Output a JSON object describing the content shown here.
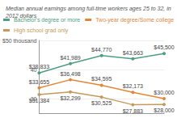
{
  "chart_data": {
    "type": "line",
    "subtitle": "Median annual earnings among full-time workers ages 25 to 32, in 2012 dollars",
    "categories": [
      null,
      null,
      null,
      null,
      null
    ],
    "series": [
      {
        "name": "Bachelor's degree or more",
        "color": "#4f9e84",
        "values": [
          38833,
          41989,
          44770,
          43663,
          45500
        ],
        "value_labels": [
          "$38,833",
          "$41,989",
          "$44,770",
          "$43,663",
          "$45,500"
        ]
      },
      {
        "name": "Two-year degree/Some college",
        "color": "#e0873a",
        "values": [
          33655,
          36498,
          34595,
          32173,
          30000
        ],
        "value_labels": [
          "$33,655",
          "$36,498",
          "$34,595",
          "$32,173",
          "$30,000"
        ]
      },
      {
        "name": "High school grad only",
        "color": "#c39a5c",
        "values": [
          31384,
          32299,
          30525,
          27883,
          28000
        ],
        "value_labels": [
          "$31,384",
          "$32,299",
          "$30,525",
          "$27,883",
          "$28,000"
        ]
      }
    ],
    "ylim": [
      25000,
      50000
    ],
    "yticks": [
      {
        "value": 30000,
        "label": "30"
      },
      {
        "value": 40000,
        "label": "40"
      },
      {
        "value": 50000,
        "label": "$50 thousand"
      }
    ],
    "grid": true,
    "legend": "top",
    "data_labels": true,
    "tick_labels": "y",
    "marker": "circle"
  }
}
